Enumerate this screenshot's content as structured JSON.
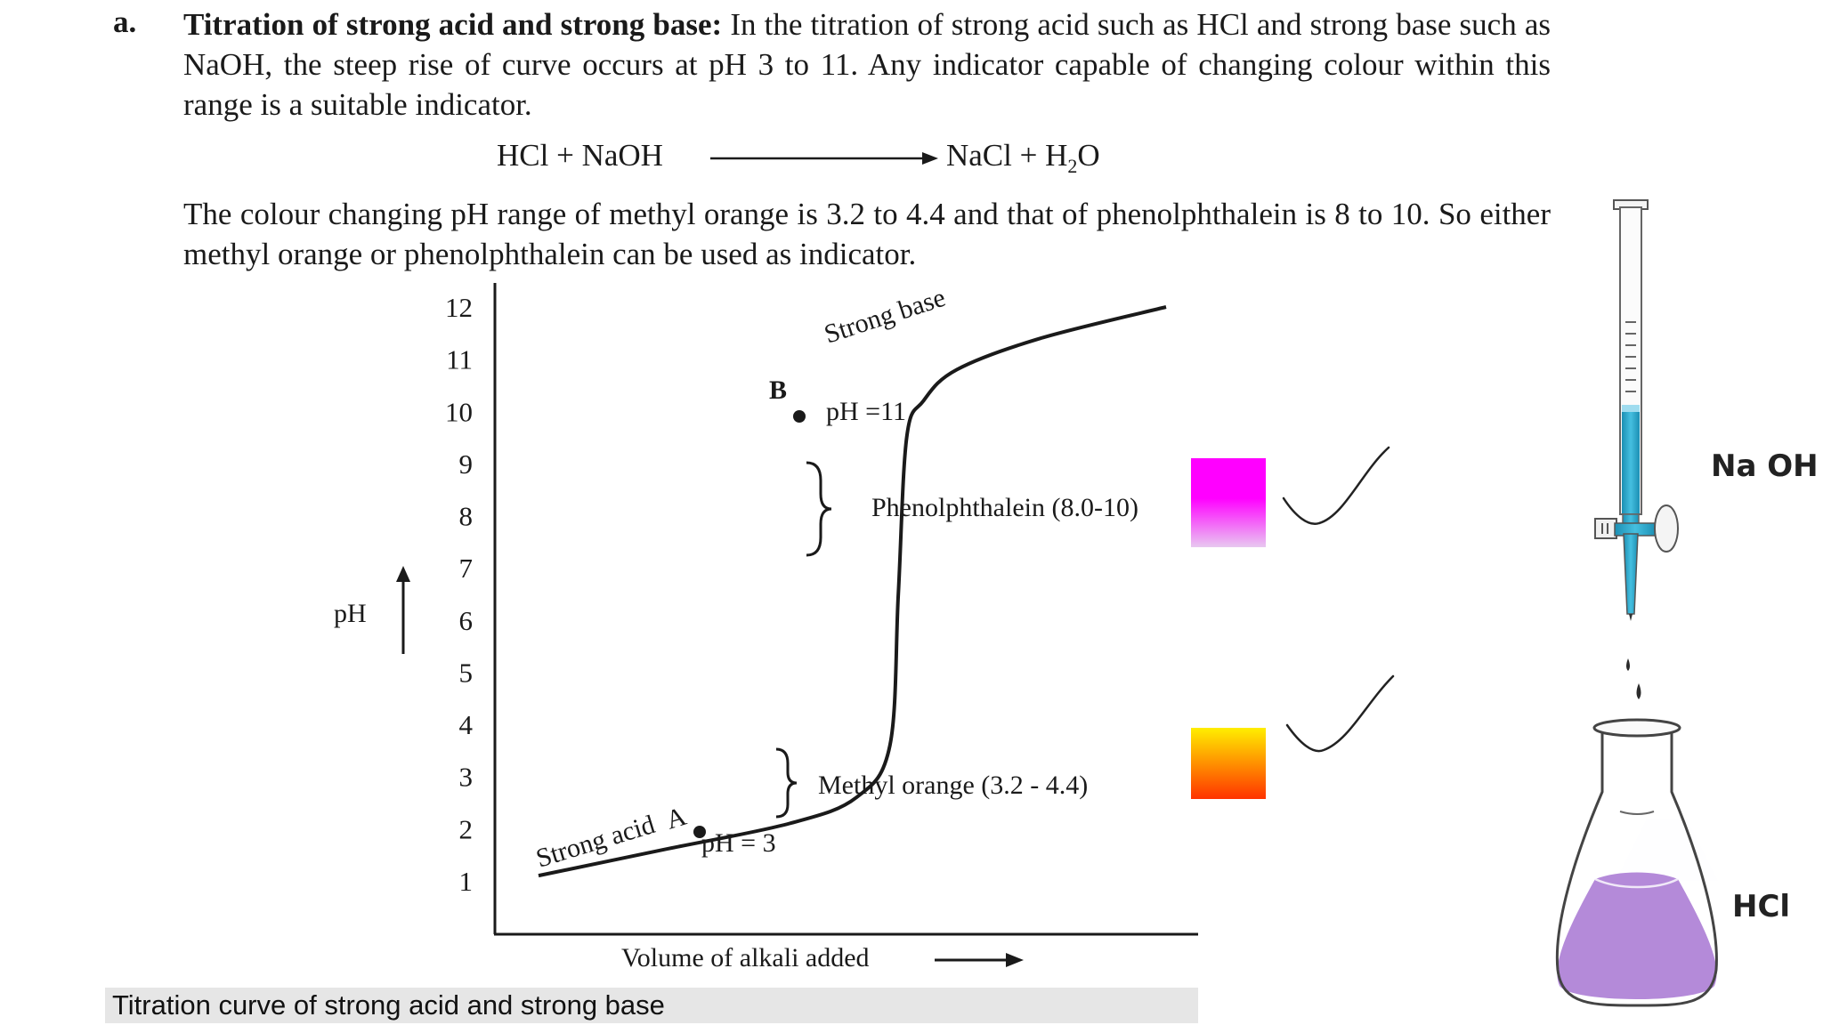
{
  "section": {
    "marker": "a.",
    "title": "Titration of strong acid and strong base:",
    "intro": " In the titration of strong acid such as HCl and strong base such as NaOH, the steep rise of curve occurs at pH 3 to 11. Any indicator capable of changing colour within this range is a suitable indicator.",
    "equation_left": "HCl + NaOH",
    "equation_right_prefix": "NaCl + H",
    "equation_right_sub": "2",
    "equation_right_suffix": "O",
    "paragraph2": "The colour changing pH range of methyl orange is 3.2 to 4.4 and that of phenolphthalein is 8 to 10. So either methyl orange or phenolphthalein can be used as indicator."
  },
  "chart_data": {
    "type": "line",
    "ylabel": "pH",
    "xlabel": "Volume of alkali added",
    "y_ticks": [
      "12",
      "11",
      "10",
      "9",
      "8",
      "7",
      "6",
      "5",
      "4",
      "3",
      "2",
      "1"
    ],
    "ylim": [
      1,
      12
    ],
    "grid": false,
    "series": [
      {
        "x": [
          0,
          0.15,
          0.3,
          0.38,
          0.42,
          0.43,
          0.44,
          0.46,
          0.5,
          0.6,
          0.75
        ],
        "values": [
          1.1,
          1.6,
          2.1,
          2.6,
          3.6,
          6.5,
          9.5,
          10.2,
          10.8,
          11.4,
          12.0
        ]
      }
    ],
    "annotations": {
      "strong_acid": "Strong acid",
      "strong_base": "Strong base",
      "point_a": "A",
      "point_b": "B",
      "ph_a": "pH = 3",
      "ph_b": "pH =11",
      "phenolphthalein": "Phenolphthalein (8.0-10)",
      "methyl_orange": "Methyl orange (3.2 - 4.4)"
    },
    "colors": {
      "phenolphthalein_top": "#ff00ff",
      "phenolphthalein_bottom": "#e8c8f0",
      "methyl_orange_top": "#ffee00",
      "methyl_orange_bottom": "#ff3300"
    }
  },
  "caption": "Titration curve of strong acid and strong base",
  "apparatus": {
    "burette_label": "Na OH",
    "flask_label": "HCl",
    "colors": {
      "burette_liquid": "#2aa5c8",
      "flask_liquid": "#b48ad9"
    }
  }
}
